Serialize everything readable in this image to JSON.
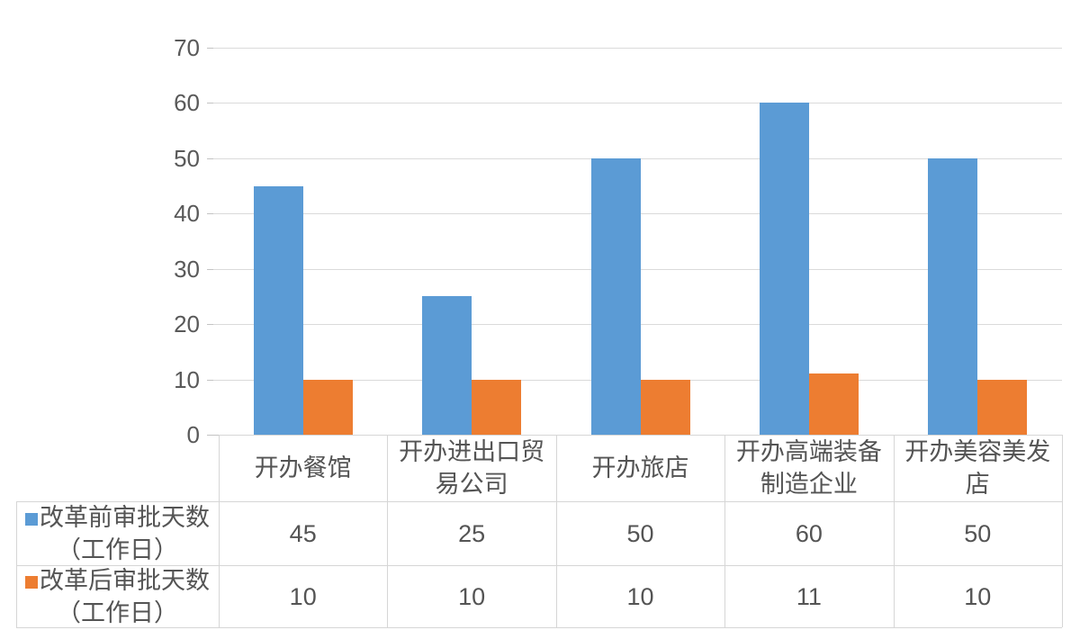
{
  "chart_data": {
    "type": "bar",
    "title": "",
    "xlabel": "",
    "ylabel": "",
    "grid": true,
    "legend_position": "data-table-left",
    "categories": [
      "开办餐馆",
      "开办进出口贸易公司",
      "开办旅店",
      "开办高端装备制造企业",
      "开办美容美发店"
    ],
    "category_lines": [
      [
        "开办餐馆"
      ],
      [
        "开办进出口贸",
        "易公司"
      ],
      [
        "开办旅店"
      ],
      [
        "开办高端装备",
        "制造企业"
      ],
      [
        "开办美容美发",
        "店"
      ]
    ],
    "series": [
      {
        "name": "改革前审批天数（工作日）",
        "name_lines": [
          "改革前审批天数",
          "（工作日）"
        ],
        "color": "#5B9BD5",
        "values": [
          45,
          25,
          50,
          60,
          50
        ],
        "value_labels": [
          "45",
          "25",
          "50",
          "60",
          "50"
        ]
      },
      {
        "name": "改革后审批天数（工作日）",
        "name_lines": [
          "改革后审批天数",
          "（工作日）"
        ],
        "color": "#ED7D31",
        "values": [
          10,
          10,
          10,
          11,
          10
        ],
        "value_labels": [
          "10",
          "10",
          "10",
          "11",
          "10"
        ]
      }
    ],
    "y_axis": {
      "min": 0,
      "max": 70,
      "step": 10,
      "tick_labels": [
        "0",
        "10",
        "20",
        "30",
        "40",
        "50",
        "60",
        "70"
      ]
    },
    "colors": {
      "series_before": "#5B9BD5",
      "series_after": "#ED7D31",
      "gridline": "#dadada",
      "table_border": "#d6d6d6",
      "text": "#595959"
    }
  }
}
